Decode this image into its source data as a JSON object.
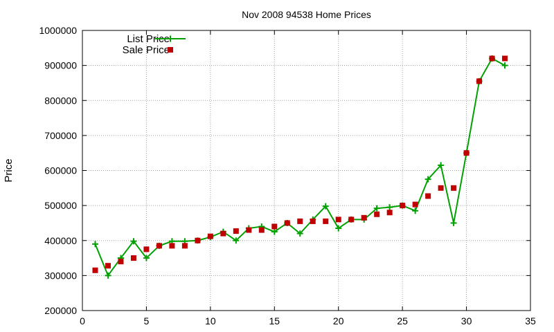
{
  "chart_data": {
    "type": "line",
    "title": "Nov 2008 94538 Home Prices",
    "xlabel": "",
    "ylabel": "Price",
    "xlim": [
      0,
      35
    ],
    "ylim": [
      200000,
      1000000
    ],
    "xticks": [
      0,
      5,
      10,
      15,
      20,
      25,
      30,
      35
    ],
    "yticks": [
      200000,
      300000,
      400000,
      500000,
      600000,
      700000,
      800000,
      900000,
      1000000
    ],
    "grid": true,
    "legend_position": "top-left",
    "series": [
      {
        "name": "List Price",
        "style": "line-with-plus-markers",
        "color": "#00a000",
        "x": [
          1,
          2,
          3,
          4,
          5,
          6,
          7,
          8,
          9,
          10,
          11,
          12,
          13,
          14,
          15,
          16,
          17,
          18,
          19,
          20,
          21,
          22,
          23,
          24,
          25,
          26,
          27,
          28,
          29,
          30,
          31,
          32,
          33
        ],
        "values": [
          390000,
          300000,
          350000,
          398000,
          350000,
          385000,
          398000,
          398000,
          400000,
          410000,
          425000,
          400000,
          435000,
          440000,
          425000,
          450000,
          420000,
          460000,
          498000,
          435000,
          460000,
          460000,
          492000,
          495000,
          500000,
          485000,
          575000,
          615000,
          450000,
          650000,
          855000,
          920000,
          900000
        ]
      },
      {
        "name": "Sale Price",
        "style": "square-markers",
        "color": "#c00000",
        "x": [
          1,
          2,
          3,
          4,
          5,
          6,
          7,
          8,
          9,
          10,
          11,
          12,
          13,
          14,
          15,
          16,
          17,
          18,
          19,
          20,
          21,
          22,
          23,
          24,
          25,
          26,
          27,
          28,
          29,
          30,
          31,
          32,
          33
        ],
        "values": [
          315000,
          328000,
          340000,
          350000,
          375000,
          385000,
          385000,
          385000,
          400000,
          412000,
          420000,
          427000,
          430000,
          430000,
          440000,
          450000,
          455000,
          455000,
          455000,
          460000,
          460000,
          465000,
          475000,
          480000,
          500000,
          503000,
          527000,
          550000,
          550000,
          650000,
          855000,
          920000,
          920000
        ]
      }
    ]
  }
}
